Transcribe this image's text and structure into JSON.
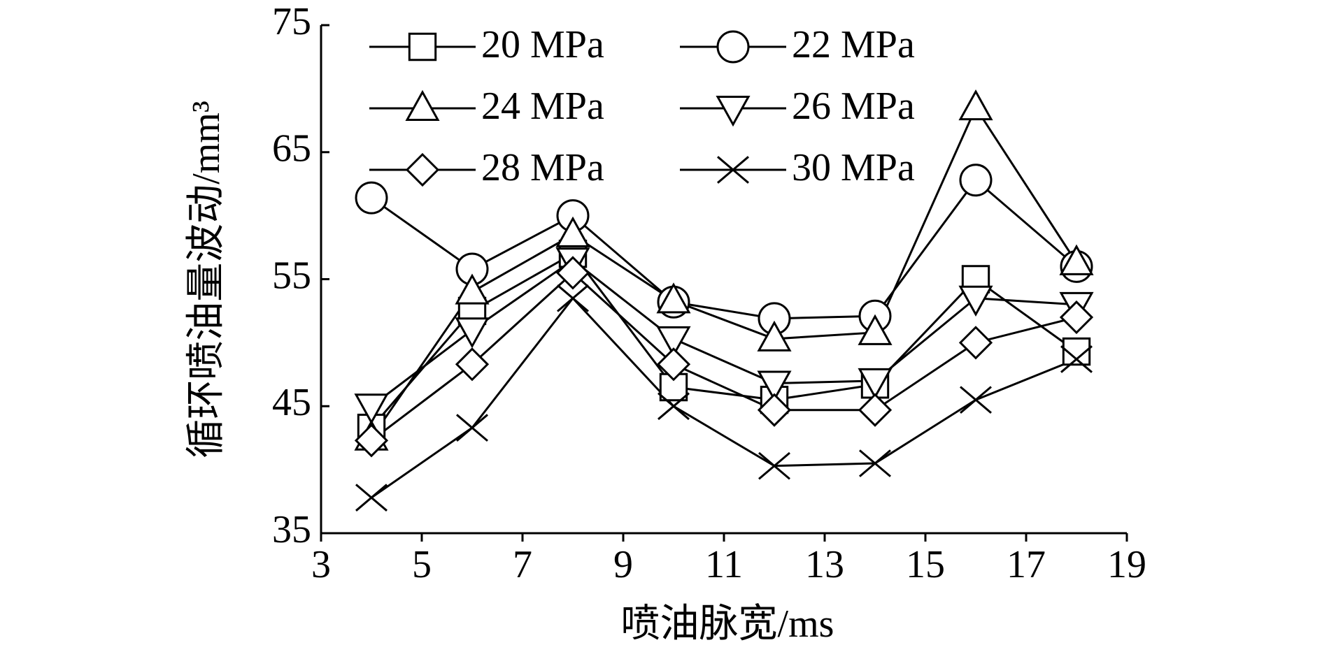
{
  "chart_data": {
    "type": "line",
    "x_label": "喷油脉宽/ms",
    "y_label": "循环喷油量波动/mm³",
    "x": [
      4,
      6,
      8,
      10,
      12,
      14,
      16,
      18
    ],
    "xlim": [
      3,
      19
    ],
    "xticks": [
      3,
      5,
      7,
      9,
      11,
      13,
      15,
      17,
      19
    ],
    "ylim": [
      35,
      75
    ],
    "yticks": [
      35,
      45,
      55,
      65,
      75
    ],
    "legend": "top-left",
    "series": [
      {
        "name": "20 MPa",
        "color": "#000000",
        "marker": "square",
        "values": [
          43.3,
          52.5,
          57.0,
          46.5,
          45.5,
          46.7,
          55.0,
          49.3
        ]
      },
      {
        "name": "22 MPa",
        "color": "#000000",
        "marker": "circle",
        "values": [
          61.4,
          55.8,
          60.0,
          53.2,
          51.9,
          52.1,
          62.8,
          56.0
        ]
      },
      {
        "name": "24 MPa",
        "color": "#000000",
        "marker": "triangle-up",
        "values": [
          42.5,
          54.0,
          58.5,
          53.3,
          50.3,
          50.8,
          68.5,
          56.3
        ]
      },
      {
        "name": "26 MPa",
        "color": "#000000",
        "marker": "triangle-down",
        "values": [
          45.0,
          51.0,
          56.5,
          50.3,
          46.8,
          47.0,
          53.5,
          53.0
        ]
      },
      {
        "name": "28 MPa",
        "color": "#000000",
        "marker": "diamond",
        "values": [
          42.3,
          48.3,
          55.5,
          48.3,
          44.7,
          44.7,
          50.0,
          52.0
        ]
      },
      {
        "name": "30 MPa",
        "color": "#000000",
        "marker": "x",
        "values": [
          37.8,
          43.3,
          53.5,
          45.0,
          40.3,
          40.5,
          45.5,
          48.7
        ]
      }
    ]
  }
}
